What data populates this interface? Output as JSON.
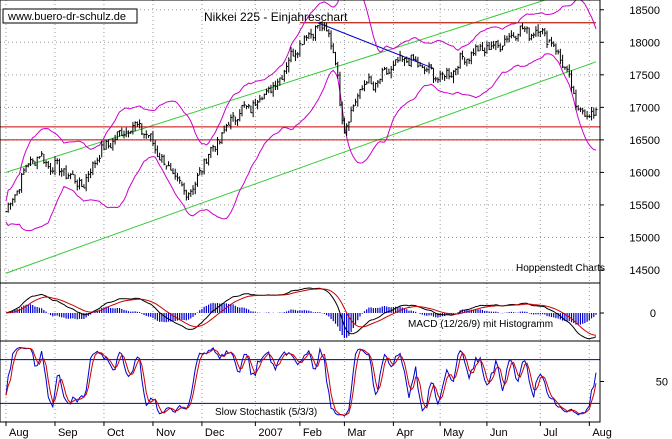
{
  "chart_data": {
    "type": "line",
    "watermark": "www.buero-dr-schulz.de",
    "title": "Nikkei 225 - Einjahreschart",
    "source_label": "Hoppenstedt Charts",
    "price_axis": {
      "ylim": [
        14300,
        18650
      ],
      "ticks": [
        "18500",
        "18000",
        "17500",
        "17000",
        "16500",
        "16000",
        "15500",
        "15000",
        "14500"
      ]
    },
    "x_labels": [
      "Aug",
      "Sep",
      "Oct",
      "Nov",
      "Dec",
      "2007",
      "Feb",
      "Mar",
      "Apr",
      "May",
      "Jun",
      "Jul",
      "Aug"
    ],
    "x_label_trading_day": [
      0,
      22,
      44,
      66,
      88,
      112,
      132,
      152,
      174,
      195,
      216,
      240,
      262
    ],
    "price_series": {
      "name": "Nikkei 225",
      "anchors_trading_day": [
        0,
        5,
        10,
        15,
        20,
        25,
        30,
        35,
        40,
        45,
        50,
        55,
        60,
        65,
        70,
        75,
        80,
        85,
        90,
        95,
        100,
        105,
        110,
        115,
        120,
        125,
        130,
        135,
        140,
        145,
        148,
        150,
        152,
        155,
        158,
        162,
        165,
        170,
        175,
        180,
        185,
        190,
        195,
        200,
        205,
        210,
        215,
        220,
        225,
        230,
        235,
        240,
        245,
        250,
        254,
        256,
        258,
        261,
        265
      ],
      "anchors_close": [
        15400,
        15750,
        16150,
        16250,
        16100,
        16050,
        15900,
        15800,
        16200,
        16400,
        16550,
        16700,
        16700,
        16500,
        16200,
        15950,
        15700,
        15800,
        16250,
        16450,
        16750,
        16950,
        17000,
        17200,
        17300,
        17600,
        17900,
        18100,
        18250,
        18150,
        17700,
        17100,
        16700,
        16900,
        17200,
        17400,
        17300,
        17500,
        17650,
        17750,
        17650,
        17550,
        17450,
        17550,
        17750,
        17850,
        17900,
        17950,
        18050,
        18200,
        18150,
        18200,
        18000,
        17700,
        17300,
        17000,
        17050,
        16800,
        17000
      ]
    },
    "channel_lines": [
      {
        "from": [
          0,
          16000
        ],
        "to": [
          265,
          18900
        ]
      },
      {
        "from": [
          0,
          14450
        ],
        "to": [
          265,
          17700
        ]
      },
      {
        "from": [
          132,
          18300
        ],
        "to": [
          265,
          18300
        ]
      }
    ],
    "resistance_line": {
      "from": [
        140,
        18300
      ],
      "to": [
        192,
        17600
      ]
    },
    "support_levels": [
      16700,
      16500
    ],
    "macd": {
      "label": "MACD (12/26/9) mit Histogramm",
      "ticks": [
        "0"
      ]
    },
    "stochastic": {
      "label": "Slow Stochastik (5/3/3)",
      "ticks": [
        "50"
      ],
      "bands": [
        80,
        20
      ]
    },
    "colors": {
      "price": "#000000",
      "bollinger": "#cc00cc",
      "channel": "#33cc33",
      "resistance": "#0000cc",
      "support": "#cc0000",
      "macd_line": "#000000",
      "macd_signal": "#cc0000",
      "histogram": "#0000cc",
      "stoch_k": "#0000cc",
      "stoch_d": "#cc0000",
      "grid": "#9a9a9a",
      "band_line": "#0000aa"
    }
  }
}
